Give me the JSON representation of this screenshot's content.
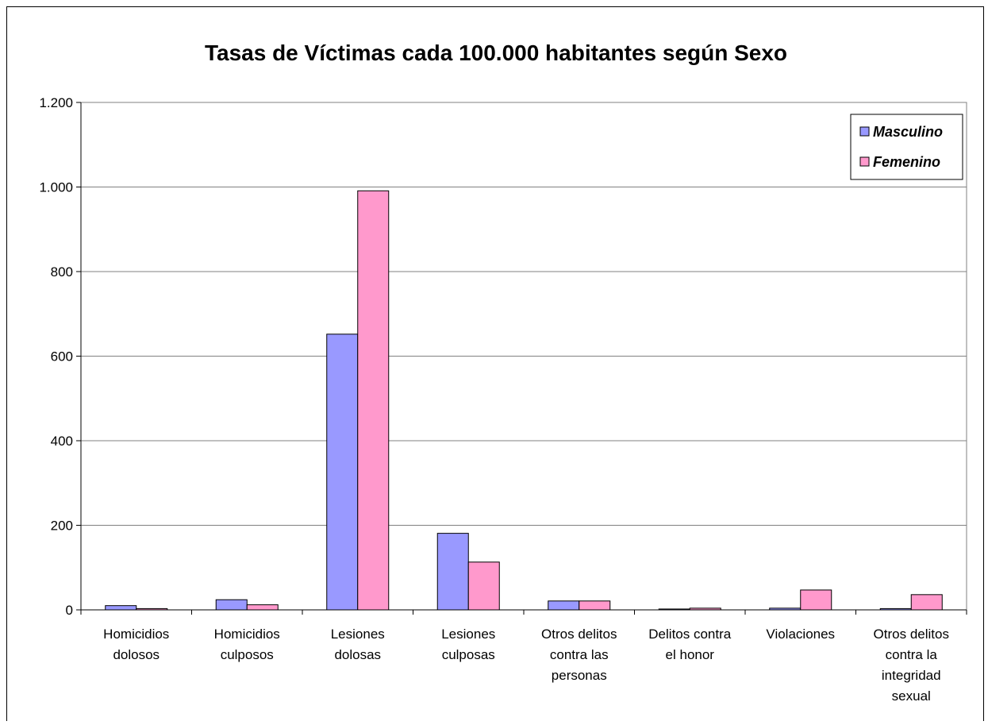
{
  "chart_data": {
    "type": "bar",
    "title": "Tasas de Víctimas cada 100.000 habitantes según Sexo",
    "xlabel": "",
    "ylabel": "",
    "ylim": [
      0,
      1200
    ],
    "yticks": [
      0,
      200,
      400,
      600,
      800,
      1000,
      1200
    ],
    "ytick_labels": [
      "0",
      "200",
      "400",
      "600",
      "800",
      "1.000",
      "1.200"
    ],
    "grid": true,
    "legend_position": "top-right",
    "categories": [
      [
        "Homicidios",
        "dolosos"
      ],
      [
        "Homicidios",
        "culposos"
      ],
      [
        "Lesiones",
        "dolosas"
      ],
      [
        "Lesiones",
        "culposas"
      ],
      [
        "Otros delitos",
        "contra las",
        "personas"
      ],
      [
        "Delitos contra",
        "el honor"
      ],
      [
        "Violaciones"
      ],
      [
        "Otros delitos",
        "contra la",
        "integridad",
        "sexual"
      ]
    ],
    "series": [
      {
        "name": "Masculino",
        "color": "#9999FF",
        "values": [
          10,
          24,
          652,
          181,
          21,
          2,
          4,
          3
        ]
      },
      {
        "name": "Femenino",
        "color": "#FF99CC",
        "values": [
          3,
          12,
          991,
          113,
          21,
          4,
          47,
          36
        ]
      }
    ]
  }
}
